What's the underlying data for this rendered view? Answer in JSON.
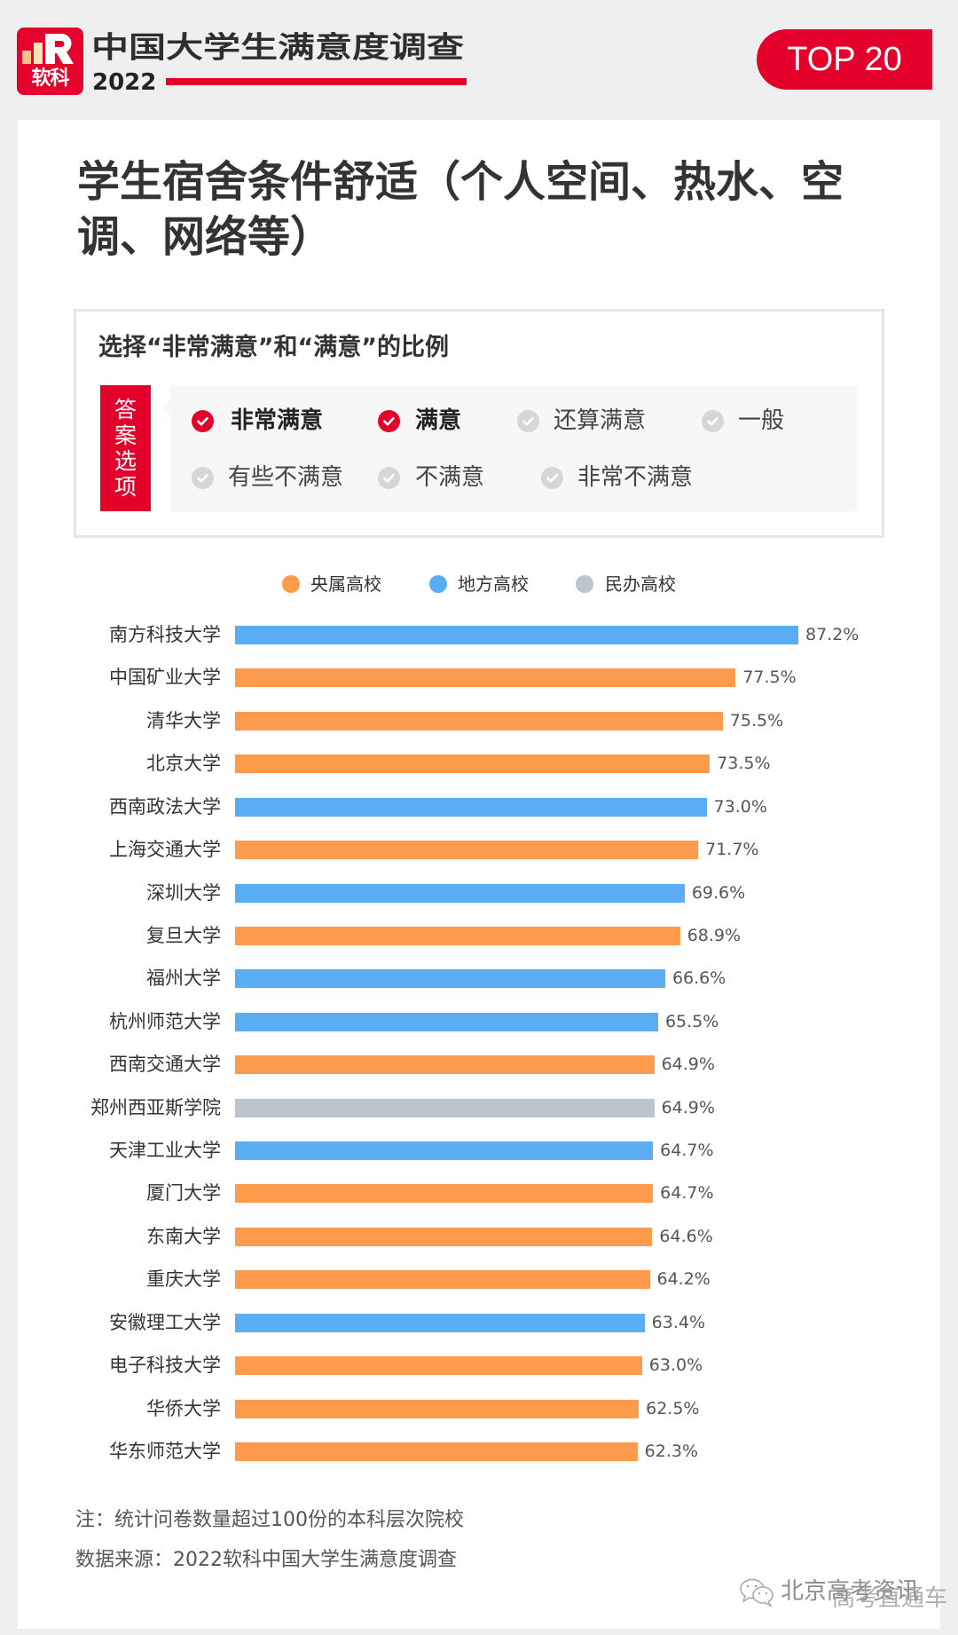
{
  "header": {
    "logo_text": "软科",
    "title": "中国大学生满意度调查",
    "year": "2022",
    "badge": "TOP 20"
  },
  "card": {
    "title": "学生宿舍条件舒适（个人空间、热水、空调、网络等）"
  },
  "options_box": {
    "subtitle": "选择“非常满意”和“满意”的比例",
    "label": "答案选项",
    "options": [
      {
        "label": "非常满意",
        "selected": true
      },
      {
        "label": "满意",
        "selected": true
      },
      {
        "label": "还算满意",
        "selected": false
      },
      {
        "label": "一般",
        "selected": false
      },
      {
        "label": "有些不满意",
        "selected": false
      },
      {
        "label": "不满意",
        "selected": false
      },
      {
        "label": "非常不满意",
        "selected": false
      }
    ]
  },
  "legend": [
    {
      "label": "央属高校",
      "color": "#fd9a4c"
    },
    {
      "label": "地方高校",
      "color": "#5aadf3"
    },
    {
      "label": "民办高校",
      "color": "#bcc5ce"
    }
  ],
  "chart_data": {
    "type": "bar",
    "orientation": "horizontal",
    "title": "学生宿舍条件舒适（个人空间、热水、空调、网络等）",
    "subtitle": "选择“非常满意”和“满意”的比例",
    "xlabel": "",
    "ylabel": "",
    "unit": "%",
    "grid": false,
    "legend_position": "top",
    "categories": [
      "南方科技大学",
      "中国矿业大学",
      "清华大学",
      "北京大学",
      "西南政法大学",
      "上海交通大学",
      "深圳大学",
      "复旦大学",
      "福州大学",
      "杭州师范大学",
      "西南交通大学",
      "郑州西亚斯学院",
      "天津工业大学",
      "厦门大学",
      "东南大学",
      "重庆大学",
      "安徽理工大学",
      "电子科技大学",
      "华侨大学",
      "华东师范大学"
    ],
    "values": [
      87.2,
      77.5,
      75.5,
      73.5,
      73.0,
      71.7,
      69.6,
      68.9,
      66.6,
      65.5,
      64.9,
      64.9,
      64.7,
      64.7,
      64.6,
      64.2,
      63.4,
      63.0,
      62.5,
      62.3
    ],
    "labels": [
      "87.2%",
      "77.5%",
      "75.5%",
      "73.5%",
      "73.0%",
      "71.7%",
      "69.6%",
      "68.9%",
      "66.6%",
      "65.5%",
      "64.9%",
      "64.9%",
      "64.7%",
      "64.7%",
      "64.6%",
      "64.2%",
      "63.4%",
      "63.0%",
      "62.5%",
      "62.3%"
    ],
    "groups": [
      "地方高校",
      "央属高校",
      "央属高校",
      "央属高校",
      "地方高校",
      "央属高校",
      "地方高校",
      "央属高校",
      "地方高校",
      "地方高校",
      "央属高校",
      "民办高校",
      "地方高校",
      "央属高校",
      "央属高校",
      "央属高校",
      "地方高校",
      "央属高校",
      "央属高校",
      "央属高校"
    ],
    "series": [
      {
        "name": "央属高校",
        "color": "#fd9a4c"
      },
      {
        "name": "地方高校",
        "color": "#5aadf3"
      },
      {
        "name": "民办高校",
        "color": "#bcc5ce"
      }
    ]
  },
  "footer": {
    "note": "注：统计问卷数量超过100份的本科层次院校",
    "source": "数据来源：2022软科中国大学生满意度调查"
  },
  "watermark": {
    "icon": "wechat-icon",
    "text": "北京高考资讯",
    "overlay": "高考直通车"
  },
  "colors": {
    "brand_red": "#e4002b",
    "check_selected": "#e4002b",
    "check_unselected": "#d6d6d6",
    "page_bg": "#efefef"
  }
}
